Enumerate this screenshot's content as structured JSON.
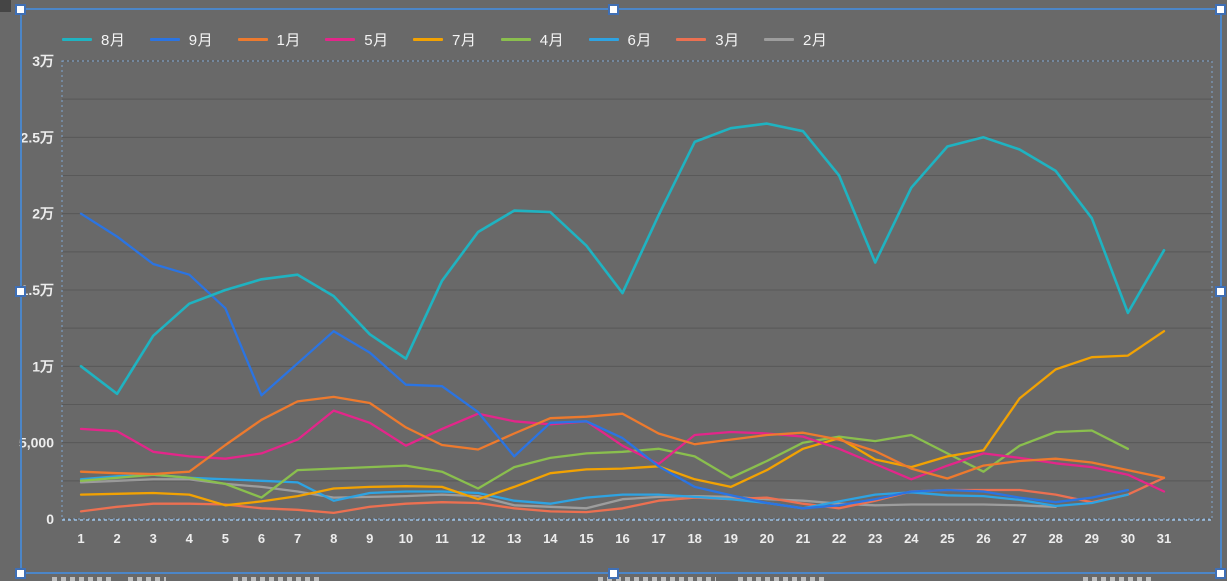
{
  "app_context": {
    "selected_object": "embedded-line-chart",
    "chart_background": "#696969",
    "gridline_color": "#595959",
    "axis_text_color": "#ededed",
    "legend_text_color": "#f4f4f4"
  },
  "selection": {
    "border_color": "#4c86c8",
    "handle_fill": "#ffffff",
    "handle_border": "#3f6fb5",
    "plot_area_dash_color": "#9dc3e6"
  },
  "chart_data": {
    "type": "line",
    "title": "",
    "xlabel": "",
    "ylabel": "",
    "legend_position": "top",
    "grid": true,
    "x": [
      1,
      2,
      3,
      4,
      5,
      6,
      7,
      8,
      9,
      10,
      11,
      12,
      13,
      14,
      15,
      16,
      17,
      18,
      19,
      20,
      21,
      22,
      23,
      24,
      25,
      26,
      27,
      28,
      29,
      30,
      31
    ],
    "ylim": [
      0,
      30000
    ],
    "y_minor_step": 2500,
    "y_ticks": [
      {
        "value": 0,
        "label": "0"
      },
      {
        "value": 5000,
        "label": "5,000"
      },
      {
        "value": 10000,
        "label": "1万"
      },
      {
        "value": 15000,
        "label": "1.5万"
      },
      {
        "value": 20000,
        "label": "2万"
      },
      {
        "value": 25000,
        "label": "2.5万"
      },
      {
        "value": 30000,
        "label": "3万"
      }
    ],
    "series": [
      {
        "name": "8月",
        "key": "aug",
        "color": "#1fb3c1",
        "values": [
          10000,
          8200,
          12000,
          14100,
          15000,
          15700,
          16000,
          14600,
          12100,
          10500,
          15600,
          18800,
          20200,
          20100,
          17900,
          14800,
          19900,
          24700,
          25600,
          25900,
          25400,
          22500,
          16800,
          21700,
          24400,
          25000,
          24200,
          22800,
          19700,
          13500,
          17600
        ]
      },
      {
        "name": "9月",
        "key": "sep",
        "color": "#2b74e2",
        "values": [
          20000,
          18500,
          16700,
          16000,
          13800,
          8100,
          10200,
          12300,
          10900,
          8800,
          8700,
          7000,
          4100,
          6300,
          6400,
          5300,
          3450,
          2100,
          1550,
          1050,
          700,
          900,
          1300,
          1800,
          1900,
          1800,
          1400,
          1100,
          1400,
          1900,
          null
        ]
      },
      {
        "name": "1月",
        "key": "jan",
        "color": "#ed7a2e",
        "values": [
          3100,
          3000,
          2950,
          3100,
          4850,
          6500,
          7700,
          8000,
          7600,
          6000,
          4850,
          4550,
          5600,
          6600,
          6700,
          6900,
          5600,
          4900,
          5200,
          5500,
          5650,
          5200,
          4450,
          3300,
          2650,
          3500,
          3800,
          3950,
          3700,
          3200,
          2700
        ]
      },
      {
        "name": "5月",
        "key": "may",
        "color": "#e3268a",
        "values": [
          5900,
          5750,
          4400,
          4100,
          3950,
          4300,
          5200,
          7100,
          6300,
          4800,
          5900,
          6900,
          6400,
          6200,
          6400,
          4800,
          3600,
          5500,
          5700,
          5600,
          5400,
          4600,
          3600,
          2600,
          3500,
          4300,
          4000,
          3650,
          3400,
          2900,
          1800
        ]
      },
      {
        "name": "7月",
        "key": "jul",
        "color": "#f2a202",
        "values": [
          1600,
          1650,
          1700,
          1600,
          900,
          1150,
          1500,
          2000,
          2100,
          2150,
          2100,
          1300,
          2100,
          3000,
          3250,
          3300,
          3450,
          2600,
          2100,
          3200,
          4600,
          5300,
          3900,
          3400,
          4100,
          4500,
          7900,
          9800,
          10600,
          10700,
          12300
        ]
      },
      {
        "name": "4月",
        "key": "apr",
        "color": "#8abf4e",
        "values": [
          2500,
          2700,
          2900,
          2700,
          2300,
          1400,
          3200,
          3300,
          3400,
          3500,
          3100,
          2000,
          3400,
          4000,
          4300,
          4400,
          4600,
          4100,
          2700,
          3800,
          5000,
          5400,
          5100,
          5500,
          4300,
          3100,
          4800,
          5700,
          5800,
          4600,
          null
        ]
      },
      {
        "name": "6月",
        "key": "jun",
        "color": "#2ea3e2",
        "values": [
          2600,
          2800,
          2900,
          2700,
          2600,
          2500,
          2400,
          1200,
          1700,
          1800,
          1800,
          1700,
          1200,
          1000,
          1400,
          1600,
          1600,
          1450,
          1300,
          1050,
          700,
          1150,
          1600,
          1750,
          1550,
          1500,
          1250,
          850,
          1050,
          1600,
          null
        ]
      },
      {
        "name": "3月",
        "key": "mar",
        "color": "#ec7051",
        "values": [
          500,
          800,
          1000,
          1000,
          950,
          700,
          600,
          400,
          800,
          1000,
          1100,
          1050,
          700,
          500,
          450,
          700,
          1200,
          1400,
          1300,
          1400,
          1000,
          700,
          1200,
          1800,
          1900,
          1900,
          1900,
          1600,
          1100,
          1600,
          2700
        ]
      },
      {
        "name": "2月",
        "key": "feb",
        "color": "#c9c9c9",
        "opacity": 0.55,
        "values": [
          2400,
          2500,
          2600,
          2600,
          2300,
          2100,
          1800,
          1400,
          1450,
          1500,
          1600,
          1500,
          900,
          800,
          700,
          1300,
          1450,
          1500,
          1450,
          1300,
          1200,
          1000,
          900,
          950,
          950,
          950,
          900,
          800,
          null,
          null,
          null
        ]
      }
    ]
  }
}
